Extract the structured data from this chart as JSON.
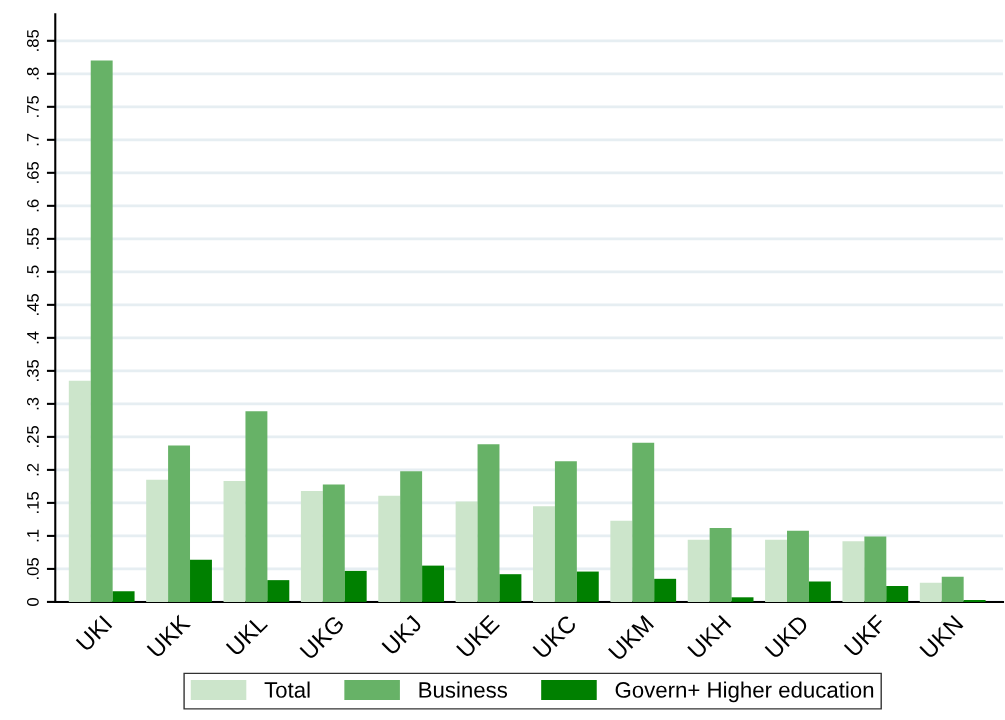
{
  "chart_data": {
    "type": "bar",
    "categories": [
      "UKI",
      "UKK",
      "UKL",
      "UKG",
      "UKJ",
      "UKE",
      "UKC",
      "UKM",
      "UKH",
      "UKD",
      "UKF",
      "UKN"
    ],
    "series": [
      {
        "name": "Total",
        "color": "#cce5cb",
        "values": [
          0.335,
          0.185,
          0.183,
          0.168,
          0.161,
          0.152,
          0.145,
          0.123,
          0.094,
          0.094,
          0.092,
          0.029
        ]
      },
      {
        "name": "Business",
        "color": "#67b267",
        "values": [
          0.82,
          0.237,
          0.289,
          0.178,
          0.198,
          0.239,
          0.213,
          0.241,
          0.112,
          0.108,
          0.099,
          0.038
        ]
      },
      {
        "name": "Govern+ Higher education",
        "color": "#008000",
        "values": [
          0.016,
          0.064,
          0.033,
          0.047,
          0.055,
          0.042,
          0.046,
          0.035,
          0.007,
          0.031,
          0.024,
          0.003
        ]
      }
    ],
    "ylim": [
      0,
      0.89
    ],
    "yticks": [
      {
        "value": 0,
        "label": "0"
      },
      {
        "value": 0.05,
        "label": ".05"
      },
      {
        "value": 0.1,
        "label": ".1"
      },
      {
        "value": 0.15,
        "label": ".15"
      },
      {
        "value": 0.2,
        "label": ".2"
      },
      {
        "value": 0.25,
        "label": ".25"
      },
      {
        "value": 0.3,
        "label": ".3"
      },
      {
        "value": 0.35,
        "label": ".35"
      },
      {
        "value": 0.4,
        "label": ".4"
      },
      {
        "value": 0.45,
        "label": ".45"
      },
      {
        "value": 0.5,
        "label": ".5"
      },
      {
        "value": 0.55,
        "label": ".55"
      },
      {
        "value": 0.6,
        "label": ".6"
      },
      {
        "value": 0.65,
        "label": ".65"
      },
      {
        "value": 0.7,
        "label": ".7"
      },
      {
        "value": 0.75,
        "label": ".75"
      },
      {
        "value": 0.8,
        "label": ".8"
      },
      {
        "value": 0.85,
        "label": ".85"
      }
    ],
    "grid": "y",
    "legend": "bottom"
  }
}
